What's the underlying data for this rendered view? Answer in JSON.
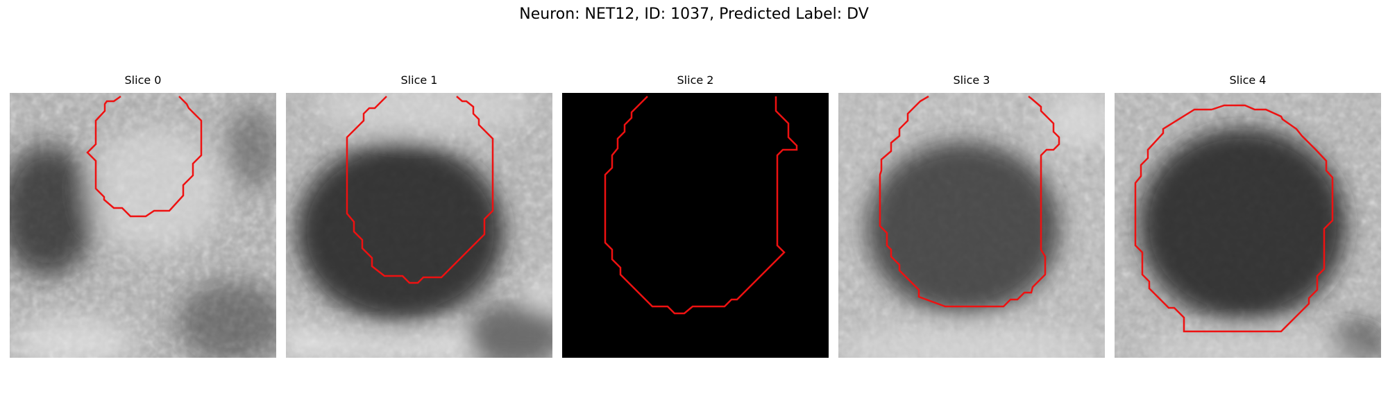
{
  "figure": {
    "title": "Neuron: NET12, ID: 1037, Predicted Label: DV"
  },
  "colors": {
    "contour": "#ee1111",
    "background": "#ffffff"
  },
  "slices": [
    {
      "title": "Slice 0",
      "content": "grayscale-microscopy-slice-with-red-contour"
    },
    {
      "title": "Slice 1",
      "content": "grayscale-microscopy-slice-with-red-contour"
    },
    {
      "title": "Slice 2",
      "content": "black-slice-with-red-contour"
    },
    {
      "title": "Slice 3",
      "content": "grayscale-microscopy-slice-with-red-contour"
    },
    {
      "title": "Slice 4",
      "content": "grayscale-microscopy-slice-with-red-contour"
    }
  ]
}
